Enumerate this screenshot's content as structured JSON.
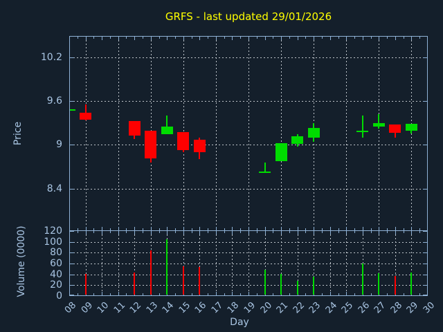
{
  "header": {
    "title": "GRFS - last updated 29/01/2026"
  },
  "colors": {
    "background": "#141f2b",
    "axis": "#8fb2d6",
    "text": "#a9c5e3",
    "grid": "#bfc5cb",
    "up": "#00dc00",
    "down": "#fe0000",
    "title": "#ffff00"
  },
  "x_axis": {
    "label": "Day",
    "first_day": 8,
    "tick_days": [
      "08",
      "09",
      "10",
      "11",
      "12",
      "13",
      "14",
      "15",
      "16",
      "17",
      "18",
      "19",
      "20",
      "21",
      "22",
      "23",
      "24",
      "25",
      "26",
      "27",
      "28",
      "29",
      "30"
    ]
  },
  "chart_data": [
    {
      "type": "candlestick",
      "title": "GRFS - last updated 29/01/2026",
      "ylabel": "Price",
      "xlabel": "Day",
      "ylim": [
        7.82,
        10.49
      ],
      "xlim": [
        8,
        30
      ],
      "yticks": [
        8.4,
        9.0,
        9.6,
        10.2
      ],
      "ytick_labels": [
        "8.4",
        "9",
        "9.6",
        "10.2"
      ],
      "grid": "dotted",
      "x_gridline_days": [
        9,
        11,
        13,
        15,
        17,
        19,
        21,
        23,
        25,
        27,
        29
      ],
      "legend": "none",
      "ohlc": [
        {
          "day": 8,
          "open": 9.49,
          "high": 9.49,
          "low": 9.49,
          "close": 9.49,
          "direction": "up"
        },
        {
          "day": 9,
          "open": 9.44,
          "high": 9.55,
          "low": 9.33,
          "close": 9.35,
          "direction": "down"
        },
        {
          "day": 12,
          "open": 9.33,
          "high": 9.33,
          "low": 9.08,
          "close": 9.13,
          "direction": "down"
        },
        {
          "day": 13,
          "open": 9.19,
          "high": 9.19,
          "low": 8.75,
          "close": 8.81,
          "direction": "down"
        },
        {
          "day": 14,
          "open": 9.15,
          "high": 9.4,
          "low": 9.15,
          "close": 9.25,
          "direction": "up"
        },
        {
          "day": 15,
          "open": 9.17,
          "high": 9.17,
          "low": 8.9,
          "close": 8.92,
          "direction": "down"
        },
        {
          "day": 16,
          "open": 9.07,
          "high": 9.1,
          "low": 8.81,
          "close": 8.9,
          "direction": "down"
        },
        {
          "day": 20,
          "open": 8.63,
          "high": 8.76,
          "low": 8.63,
          "close": 8.63,
          "direction": "up"
        },
        {
          "day": 21,
          "open": 8.77,
          "high": 9.02,
          "low": 8.77,
          "close": 9.02,
          "direction": "up"
        },
        {
          "day": 22,
          "open": 9.02,
          "high": 9.15,
          "low": 8.98,
          "close": 9.12,
          "direction": "up"
        },
        {
          "day": 23,
          "open": 9.1,
          "high": 9.3,
          "low": 9.04,
          "close": 9.23,
          "direction": "up"
        },
        {
          "day": 26,
          "open": 9.19,
          "high": 9.4,
          "low": 9.1,
          "close": 9.19,
          "direction": "up"
        },
        {
          "day": 27,
          "open": 9.25,
          "high": 9.42,
          "low": 9.22,
          "close": 9.3,
          "direction": "up"
        },
        {
          "day": 28,
          "open": 9.28,
          "high": 9.28,
          "low": 9.1,
          "close": 9.17,
          "direction": "down"
        },
        {
          "day": 29,
          "open": 9.2,
          "high": 9.29,
          "low": 9.16,
          "close": 9.29,
          "direction": "up"
        }
      ]
    },
    {
      "type": "bar",
      "ylabel": "Volume (0000)",
      "ylim": [
        0,
        120
      ],
      "xlim": [
        8,
        30
      ],
      "yticks": [
        0,
        20,
        40,
        60,
        80,
        100,
        120
      ],
      "ytick_labels": [
        "0",
        "20",
        "40",
        "60",
        "80",
        "100",
        "120"
      ],
      "grid": "dotted",
      "x_gridline_days": [
        9,
        10,
        11,
        12,
        13,
        14,
        15,
        16,
        17,
        18,
        19,
        20,
        21,
        22,
        23,
        24,
        25,
        26,
        27,
        28,
        29
      ],
      "bars": [
        {
          "day": 9,
          "value": 41,
          "direction": "down"
        },
        {
          "day": 12,
          "value": 44,
          "direction": "down"
        },
        {
          "day": 13,
          "value": 84,
          "direction": "down"
        },
        {
          "day": 14,
          "value": 105,
          "direction": "up"
        },
        {
          "day": 15,
          "value": 55,
          "direction": "down"
        },
        {
          "day": 16,
          "value": 53,
          "direction": "down"
        },
        {
          "day": 20,
          "value": 48,
          "direction": "up"
        },
        {
          "day": 21,
          "value": 41,
          "direction": "up"
        },
        {
          "day": 22,
          "value": 28,
          "direction": "up"
        },
        {
          "day": 23,
          "value": 36,
          "direction": "up"
        },
        {
          "day": 26,
          "value": 60,
          "direction": "up"
        },
        {
          "day": 27,
          "value": 42,
          "direction": "up"
        },
        {
          "day": 28,
          "value": 37,
          "direction": "down"
        },
        {
          "day": 29,
          "value": 43,
          "direction": "up"
        }
      ]
    }
  ]
}
